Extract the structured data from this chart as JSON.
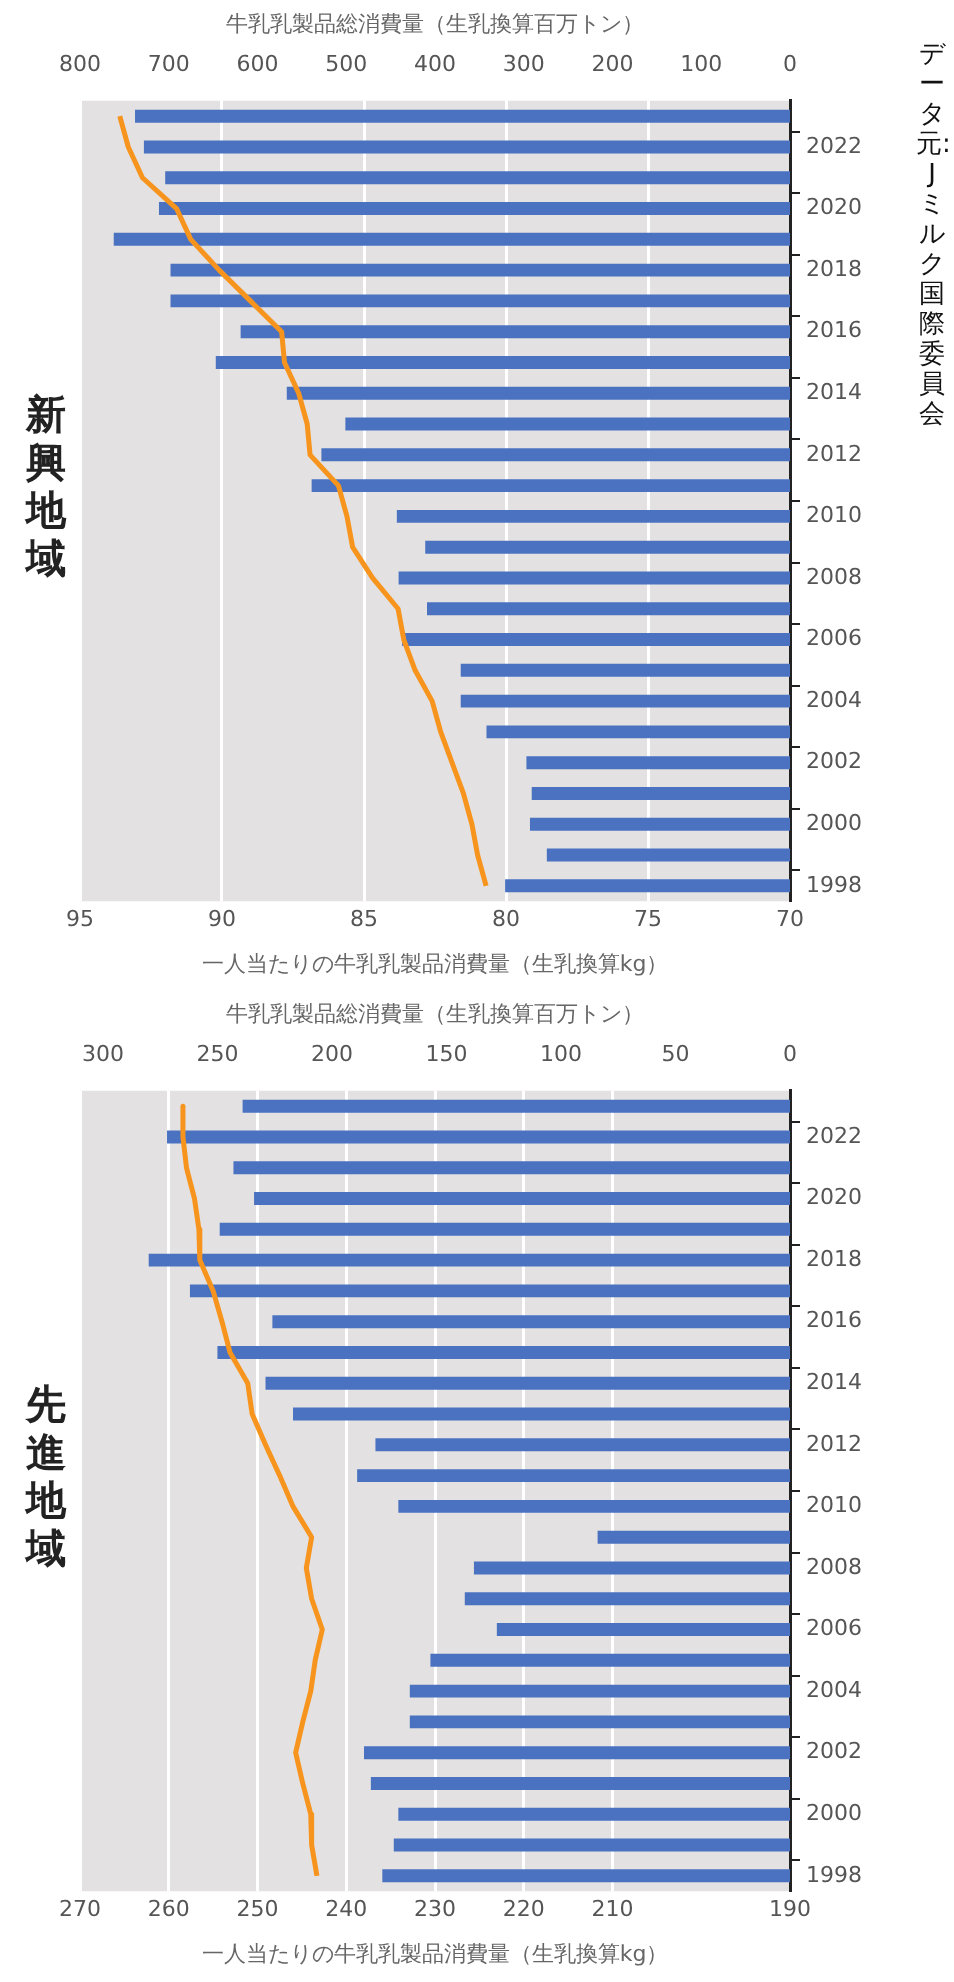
{
  "chart_data": [
    {
      "type": "bar",
      "orientation": "horizontal",
      "title": "新興地域",
      "xlabel": "一人当たりの牛乳乳製品消費量（生乳換算kg）",
      "x2label": "牛乳乳製品総消費量（生乳換算百万トン）",
      "categories": [
        null,
        "2022",
        null,
        "2020",
        null,
        "2018",
        null,
        "2016",
        null,
        "2014",
        null,
        "2012",
        null,
        "2010",
        null,
        "2008",
        null,
        "2006",
        null,
        "2004",
        null,
        "2002",
        null,
        "2000",
        null,
        "1998"
      ],
      "series": [
        {
          "axis": "x2",
          "color": "#4a72c0",
          "values": [
            738,
            728,
            704,
            711,
            762,
            698,
            698,
            619,
            647,
            567,
            501,
            528,
            539,
            443,
            411,
            441,
            409,
            437,
            371,
            371,
            342,
            297,
            291,
            293,
            274,
            321
          ]
        },
        {
          "type": "line",
          "color": "#f7941d",
          "values": [
            93.6,
            93.3,
            92.8,
            91.6,
            91.1,
            90.1,
            89.0,
            87.9,
            87.8,
            87.3,
            87.0,
            86.9,
            85.9,
            85.6,
            85.4,
            84.7,
            83.8,
            83.6,
            83.2,
            82.6,
            82.3,
            81.9,
            81.5,
            81.2,
            81.0,
            80.7
          ]
        }
      ],
      "xlim": [
        95,
        70
      ],
      "xticks": [
        70,
        75,
        80,
        85,
        90,
        95
      ],
      "x2lim": [
        800,
        0
      ],
      "x2ticks": [
        0,
        100,
        200,
        300,
        400,
        500,
        600,
        700,
        800
      ],
      "grid": "x",
      "annotations": [
        "データ元:Jミルク国際委員会"
      ]
    },
    {
      "type": "bar",
      "orientation": "horizontal",
      "title": "先進地域",
      "xlabel": "一人当たりの牛乳乳製品消費量（生乳換算kg）",
      "x2label": "牛乳乳製品総消費量（生乳換算百万トン）",
      "categories": [
        null,
        "2022",
        null,
        "2020",
        null,
        "2018",
        null,
        "2016",
        null,
        "2014",
        null,
        "2012",
        null,
        "2010",
        null,
        "2008",
        null,
        "2006",
        null,
        "2004",
        null,
        "2002",
        null,
        "2000",
        null,
        "1998"
      ],
      "series": [
        {
          "axis": "x2",
          "color": "#4a72c0",
          "values": [
            239,
            272,
            243,
            234,
            249,
            280,
            262,
            226,
            250,
            229,
            217,
            181,
            189,
            171,
            84,
            138,
            142,
            128,
            157,
            166,
            166,
            186,
            183,
            171,
            173,
            178
          ]
        },
        {
          "type": "line",
          "color": "#f7941d",
          "values": [
            258.4,
            258.4,
            258.0,
            257.1,
            256.6,
            256.5,
            255.0,
            254.0,
            253.1,
            251.1,
            250.6,
            249.1,
            247.5,
            246.0,
            243.9,
            244.5,
            243.9,
            242.7,
            243.5,
            244.0,
            244.9,
            245.7,
            244.9,
            244.0,
            243.9,
            243.3
          ]
        }
      ],
      "xlim": [
        270,
        190
      ],
      "xticks": [
        190,
        210,
        220,
        230,
        240,
        250,
        260,
        270
      ],
      "x2lim": [
        310,
        0
      ],
      "x2ticks": [
        0,
        50,
        100,
        150,
        200,
        250,
        300
      ],
      "grid": "x"
    }
  ]
}
